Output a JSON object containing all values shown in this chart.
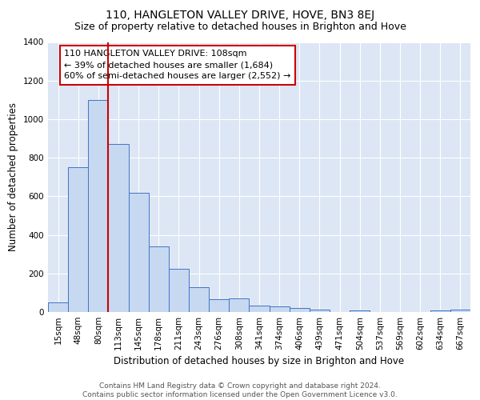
{
  "title": "110, HANGLETON VALLEY DRIVE, HOVE, BN3 8EJ",
  "subtitle": "Size of property relative to detached houses in Brighton and Hove",
  "xlabel": "Distribution of detached houses by size in Brighton and Hove",
  "ylabel": "Number of detached properties",
  "categories": [
    "15sqm",
    "48sqm",
    "80sqm",
    "113sqm",
    "145sqm",
    "178sqm",
    "211sqm",
    "243sqm",
    "276sqm",
    "308sqm",
    "341sqm",
    "374sqm",
    "406sqm",
    "439sqm",
    "471sqm",
    "504sqm",
    "537sqm",
    "569sqm",
    "602sqm",
    "634sqm",
    "667sqm"
  ],
  "values": [
    50,
    750,
    1100,
    870,
    620,
    340,
    225,
    130,
    65,
    70,
    33,
    30,
    22,
    13,
    0,
    10,
    0,
    0,
    0,
    10,
    13
  ],
  "bar_color": "#c6d9f1",
  "bar_edge_color": "#4472c4",
  "vline_color": "#cc0000",
  "annotation_text": "110 HANGLETON VALLEY DRIVE: 108sqm\n← 39% of detached houses are smaller (1,684)\n60% of semi-detached houses are larger (2,552) →",
  "annotation_box_color": "white",
  "annotation_box_edge": "#cc0000",
  "ylim": [
    0,
    1400
  ],
  "yticks": [
    0,
    200,
    400,
    600,
    800,
    1000,
    1200,
    1400
  ],
  "footnote": "Contains HM Land Registry data © Crown copyright and database right 2024.\nContains public sector information licensed under the Open Government Licence v3.0.",
  "background_color": "#dce6f5",
  "title_fontsize": 10,
  "subtitle_fontsize": 9,
  "axis_label_fontsize": 8.5,
  "tick_fontsize": 7.5,
  "annotation_fontsize": 8,
  "footnote_fontsize": 6.5
}
